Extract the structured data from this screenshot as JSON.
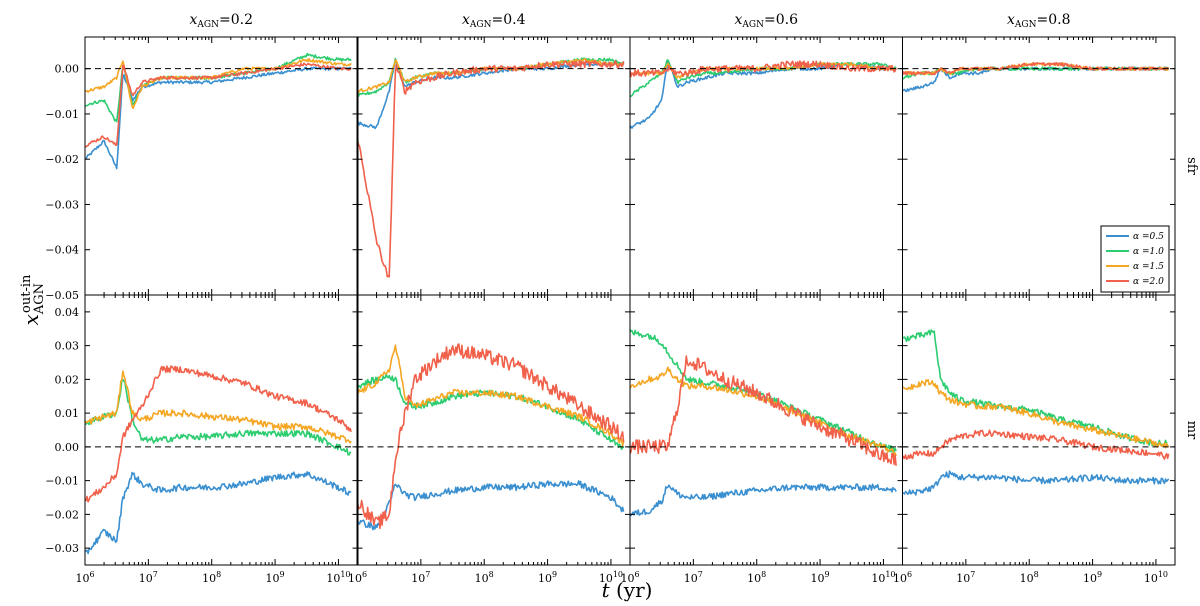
{
  "chart_data": {
    "type": "line",
    "figure": {
      "xlabel": "t (yr)",
      "ylabel": "x_AGN^out-in",
      "xscale": "log",
      "xlim": [
        1000000,
        20000000000
      ],
      "x_tick_labels": [
        "10^6",
        "10^7",
        "10^8",
        "10^9",
        "10^10"
      ],
      "column_titles": [
        "x_AGN=0.2",
        "x_AGN=0.4",
        "x_AGN=0.6",
        "x_AGN=0.8"
      ],
      "rows": [
        {
          "label": "sfr",
          "ylim": [
            -0.05,
            0.007
          ],
          "yticks": [
            -0.05,
            -0.04,
            -0.03,
            -0.02,
            -0.01,
            0.0
          ],
          "ytick_labels": [
            "−0.05",
            "−0.04",
            "−0.03",
            "−0.02",
            "−0.01",
            "0.00"
          ]
        },
        {
          "label": "mr",
          "ylim": [
            -0.035,
            0.045
          ],
          "yticks": [
            -0.03,
            -0.02,
            -0.01,
            0.0,
            0.01,
            0.02,
            0.03,
            0.04
          ],
          "ytick_labels": [
            "−0.03",
            "−0.02",
            "−0.01",
            "0.00",
            "0.01",
            "0.02",
            "0.03",
            "0.04"
          ]
        }
      ],
      "reference_line": 0.0,
      "legend": {
        "location": "lower-right of top-right panel",
        "entries": [
          "α =0.5",
          "α =1.0",
          "α =1.5",
          "α =2.0"
        ]
      }
    },
    "series": [
      {
        "name": "α =0.5",
        "color": "#3a8fd0"
      },
      {
        "name": "α =1.0",
        "color": "#2ecc71"
      },
      {
        "name": "α =1.5",
        "color": "#f5a623"
      },
      {
        "name": "α =2.0",
        "color": "#f0604a"
      }
    ],
    "log_t": [
      6.0,
      6.3,
      6.5,
      6.6,
      6.75,
      6.9,
      7.2,
      7.5,
      8.0,
      8.5,
      9.0,
      9.5,
      10.0,
      10.2
    ],
    "panels": [
      {
        "row": 0,
        "col": 0,
        "series_values": [
          [
            -0.02,
            -0.016,
            -0.022,
            -0.001,
            -0.007,
            -0.004,
            -0.003,
            -0.003,
            -0.003,
            -0.002,
            -0.001,
            0.0,
            0.0,
            0.0
          ],
          [
            -0.008,
            -0.007,
            -0.012,
            0.001,
            -0.008,
            -0.004,
            -0.002,
            -0.002,
            -0.002,
            -0.001,
            0.0,
            0.003,
            0.002,
            0.002
          ],
          [
            -0.005,
            -0.004,
            -0.002,
            0.002,
            -0.009,
            -0.004,
            -0.002,
            -0.002,
            -0.002,
            0.0,
            0.0,
            0.002,
            0.001,
            0.001
          ],
          [
            -0.017,
            -0.015,
            -0.017,
            0.001,
            -0.006,
            -0.003,
            -0.002,
            -0.002,
            -0.002,
            -0.001,
            0.0,
            0.001,
            0.0,
            0.0
          ]
        ]
      },
      {
        "row": 0,
        "col": 1,
        "series_values": [
          [
            -0.012,
            -0.013,
            -0.005,
            0.002,
            -0.004,
            -0.003,
            -0.002,
            -0.002,
            -0.001,
            0.0,
            0.0,
            0.001,
            0.001,
            0.001
          ],
          [
            -0.006,
            -0.005,
            -0.003,
            0.002,
            -0.003,
            -0.002,
            -0.001,
            -0.001,
            0.0,
            0.0,
            0.001,
            0.002,
            0.002,
            0.001
          ],
          [
            -0.005,
            -0.004,
            -0.003,
            0.002,
            -0.003,
            -0.002,
            -0.001,
            -0.001,
            0.0,
            0.0,
            0.001,
            0.002,
            0.001,
            0.001
          ],
          [
            -0.015,
            -0.038,
            -0.047,
            0.001,
            -0.005,
            -0.003,
            -0.002,
            -0.001,
            0.0,
            0.0,
            0.001,
            0.001,
            0.001,
            0.001
          ]
        ]
      },
      {
        "row": 0,
        "col": 2,
        "series_values": [
          [
            -0.013,
            -0.011,
            -0.007,
            0.002,
            -0.004,
            -0.003,
            -0.002,
            -0.001,
            -0.001,
            0.0,
            0.0,
            0.001,
            0.0,
            0.0
          ],
          [
            -0.006,
            -0.003,
            -0.001,
            0.002,
            -0.003,
            -0.002,
            -0.001,
            -0.001,
            0.0,
            0.0,
            0.001,
            0.001,
            0.001,
            0.0
          ],
          [
            -0.001,
            -0.001,
            -0.001,
            0.001,
            -0.002,
            -0.001,
            0.0,
            0.0,
            0.0,
            0.0,
            0.001,
            0.001,
            0.0,
            0.0
          ],
          [
            -0.001,
            -0.001,
            -0.001,
            0.0,
            -0.001,
            -0.001,
            0.0,
            0.0,
            0.0,
            0.001,
            0.001,
            0.0,
            0.0,
            0.0
          ]
        ]
      },
      {
        "row": 0,
        "col": 3,
        "series_values": [
          [
            -0.005,
            -0.004,
            -0.003,
            0.0,
            -0.002,
            -0.001,
            -0.001,
            0.0,
            0.0,
            0.0,
            0.0,
            0.0,
            0.0,
            0.0
          ],
          [
            -0.002,
            -0.001,
            -0.001,
            0.0,
            -0.001,
            -0.001,
            0.0,
            0.0,
            0.0,
            0.0,
            0.0,
            0.0,
            0.0,
            0.0
          ],
          [
            -0.001,
            -0.001,
            -0.001,
            0.0,
            -0.001,
            0.0,
            0.0,
            0.0,
            0.001,
            0.001,
            0.0,
            0.0,
            0.0,
            0.0
          ],
          [
            -0.001,
            -0.001,
            -0.001,
            0.0,
            -0.001,
            0.0,
            0.0,
            0.0,
            0.001,
            0.001,
            0.0,
            0.0,
            0.0,
            0.0
          ]
        ]
      },
      {
        "row": 1,
        "col": 0,
        "series_values": [
          [
            -0.032,
            -0.025,
            -0.028,
            -0.015,
            -0.008,
            -0.011,
            -0.013,
            -0.012,
            -0.012,
            -0.011,
            -0.009,
            -0.008,
            -0.012,
            -0.014
          ],
          [
            0.007,
            0.009,
            0.01,
            0.021,
            0.008,
            0.002,
            0.002,
            0.003,
            0.003,
            0.004,
            0.004,
            0.004,
            0.0,
            -0.002
          ],
          [
            0.007,
            0.009,
            0.01,
            0.023,
            0.01,
            0.008,
            0.01,
            0.01,
            0.009,
            0.008,
            0.006,
            0.006,
            0.003,
            0.002
          ],
          [
            -0.016,
            -0.012,
            -0.008,
            0.003,
            0.008,
            0.012,
            0.023,
            0.023,
            0.021,
            0.019,
            0.015,
            0.013,
            0.008,
            0.005
          ]
        ]
      },
      {
        "row": 1,
        "col": 1,
        "series_values": [
          [
            -0.022,
            -0.024,
            -0.017,
            -0.011,
            -0.014,
            -0.015,
            -0.014,
            -0.013,
            -0.012,
            -0.012,
            -0.011,
            -0.011,
            -0.015,
            -0.019
          ],
          [
            0.018,
            0.02,
            0.021,
            0.02,
            0.013,
            0.012,
            0.013,
            0.015,
            0.016,
            0.015,
            0.012,
            0.008,
            0.002,
            -0.001
          ],
          [
            0.016,
            0.019,
            0.023,
            0.03,
            0.015,
            0.012,
            0.014,
            0.016,
            0.016,
            0.015,
            0.012,
            0.009,
            0.004,
            0.001
          ],
          [
            -0.016,
            -0.023,
            -0.02,
            -0.003,
            0.01,
            0.02,
            0.025,
            0.029,
            0.027,
            0.024,
            0.018,
            0.012,
            0.006,
            0.003
          ]
        ]
      },
      {
        "row": 1,
        "col": 2,
        "series_values": [
          [
            -0.02,
            -0.019,
            -0.016,
            -0.011,
            -0.014,
            -0.015,
            -0.015,
            -0.014,
            -0.013,
            -0.012,
            -0.012,
            -0.012,
            -0.012,
            -0.013
          ],
          [
            0.034,
            0.033,
            0.031,
            0.028,
            0.024,
            0.02,
            0.019,
            0.018,
            0.016,
            0.012,
            0.008,
            0.004,
            0.0,
            -0.001
          ],
          [
            0.018,
            0.02,
            0.021,
            0.023,
            0.02,
            0.018,
            0.018,
            0.017,
            0.015,
            0.011,
            0.007,
            0.003,
            0.0,
            -0.002
          ],
          [
            0.0,
            0.0,
            0.0,
            0.0,
            0.012,
            0.026,
            0.023,
            0.02,
            0.016,
            0.011,
            0.006,
            0.002,
            -0.003,
            -0.004
          ]
        ]
      },
      {
        "row": 1,
        "col": 3,
        "series_values": [
          [
            -0.014,
            -0.013,
            -0.012,
            -0.009,
            -0.008,
            -0.009,
            -0.009,
            -0.009,
            -0.01,
            -0.01,
            -0.009,
            -0.01,
            -0.01,
            -0.01
          ],
          [
            0.032,
            0.033,
            0.034,
            0.02,
            0.016,
            0.014,
            0.013,
            0.012,
            0.011,
            0.008,
            0.006,
            0.003,
            0.001,
            0.001
          ],
          [
            0.017,
            0.019,
            0.019,
            0.016,
            0.014,
            0.013,
            0.012,
            0.012,
            0.01,
            0.007,
            0.005,
            0.003,
            0.001,
            0.0
          ],
          [
            -0.003,
            -0.002,
            -0.002,
            0.0,
            0.002,
            0.003,
            0.004,
            0.004,
            0.003,
            0.002,
            0.0,
            -0.001,
            -0.002,
            -0.003
          ]
        ]
      }
    ]
  }
}
